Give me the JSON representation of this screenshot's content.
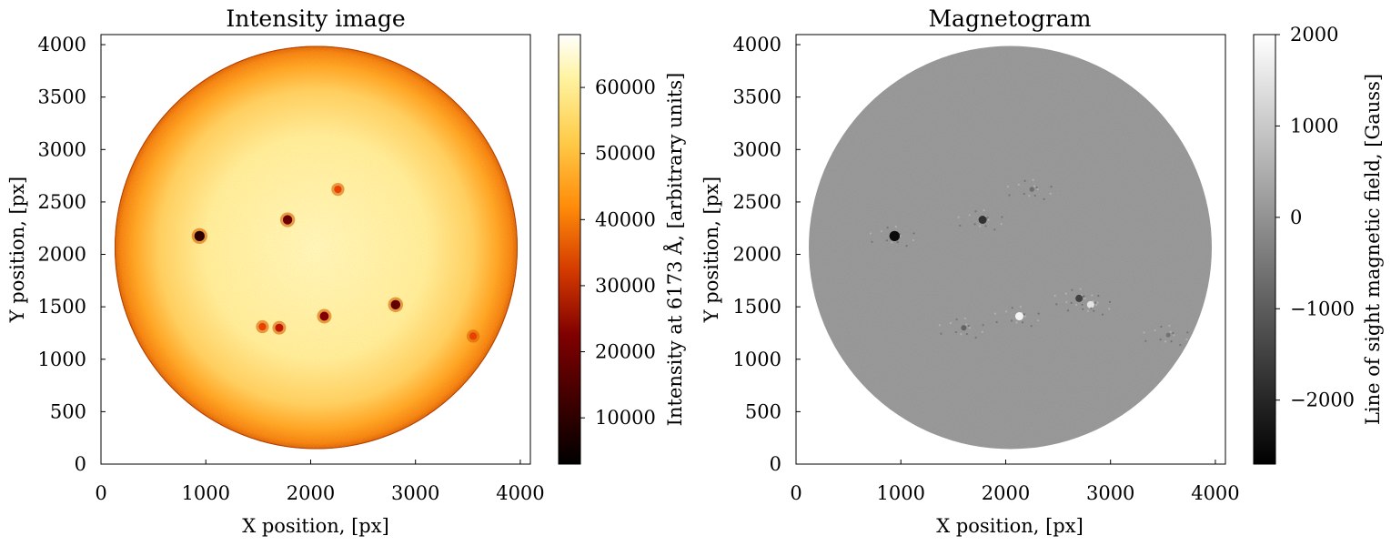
{
  "chart_data": [
    {
      "type": "heatmap",
      "title": "Intensity image",
      "xlabel": "X position, [px]",
      "ylabel": "Y position, [px]",
      "xlim": [
        0,
        4096
      ],
      "ylim": [
        0,
        4096
      ],
      "x_ticks": [
        "0",
        "1000",
        "2000",
        "3000",
        "4000"
      ],
      "y_ticks": [
        "0",
        "500",
        "1000",
        "1500",
        "2000",
        "2500",
        "3000",
        "3500",
        "4000"
      ],
      "colormap": "afmhot",
      "colorbar": {
        "label": "Intensity at 6173 Å, [arbitrary units]",
        "range": [
          3000,
          68000
        ],
        "ticks": [
          "10000",
          "20000",
          "30000",
          "40000",
          "50000",
          "60000"
        ]
      },
      "disk": {
        "center": [
          2048,
          2048
        ],
        "radius": 1920
      },
      "features": [
        {
          "x": 940,
          "y": 2175,
          "value": 8000
        },
        {
          "x": 1780,
          "y": 2330,
          "value": 15000
        },
        {
          "x": 2810,
          "y": 1520,
          "value": 14000
        },
        {
          "x": 2130,
          "y": 1410,
          "value": 18000
        },
        {
          "x": 1700,
          "y": 1300,
          "value": 25000
        },
        {
          "x": 2260,
          "y": 2620,
          "value": 30000
        },
        {
          "x": 1540,
          "y": 1310,
          "value": 30000
        },
        {
          "x": 3550,
          "y": 1220,
          "value": 30000
        }
      ],
      "grid": false
    },
    {
      "type": "heatmap",
      "title": "Magnetogram",
      "xlabel": "X position, [px]",
      "ylabel": "Y position, [px]",
      "xlim": [
        0,
        4096
      ],
      "ylim": [
        0,
        4096
      ],
      "x_ticks": [
        "0",
        "1000",
        "2000",
        "3000",
        "4000"
      ],
      "y_ticks": [
        "0",
        "500",
        "1000",
        "1500",
        "2000",
        "2500",
        "3000",
        "3500",
        "4000"
      ],
      "colormap": "gray",
      "colorbar": {
        "label": "Line of sight magnetic field, [Gauss]",
        "range": [
          -2700,
          2000
        ],
        "ticks": [
          "2000",
          "1000",
          "0",
          "−1000",
          "−2000"
        ]
      },
      "disk": {
        "center": [
          2048,
          2048
        ],
        "radius": 1920
      },
      "features": [
        {
          "x": 940,
          "y": 2175,
          "value": -2500
        },
        {
          "x": 1780,
          "y": 2330,
          "value": -1800
        },
        {
          "x": 2810,
          "y": 1520,
          "value": 1500
        },
        {
          "x": 2700,
          "y": 1580,
          "value": -1500
        },
        {
          "x": 2130,
          "y": 1410,
          "value": 1800
        },
        {
          "x": 1600,
          "y": 1300,
          "value": -900
        },
        {
          "x": 2250,
          "y": 2620,
          "value": -700
        },
        {
          "x": 3550,
          "y": 1230,
          "value": -600
        }
      ],
      "grid": false
    }
  ]
}
